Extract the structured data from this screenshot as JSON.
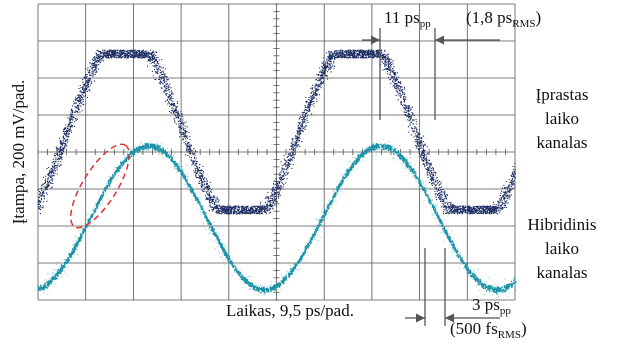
{
  "y_axis_label": "Įtampa, 200 mV/pad.",
  "x_axis_label": "Laikas, 9,5 ps/pad.",
  "channels": [
    {
      "lines": [
        "Įprastas",
        "laiko",
        "kanalas"
      ]
    },
    {
      "lines": [
        "Hibridinis",
        "laiko",
        "kanalas"
      ]
    }
  ],
  "annotations": {
    "top_pp": {
      "main": "11 ps",
      "sub": "pp"
    },
    "top_rms": {
      "main": "(1,8 ps",
      "sub": "RMS",
      "tail": ")"
    },
    "bottom_pp": {
      "main": "3 ps",
      "sub": "pp"
    },
    "bottom_rms": {
      "main": "(500 fs",
      "sub": "RMS",
      "tail": ")"
    }
  }
}
